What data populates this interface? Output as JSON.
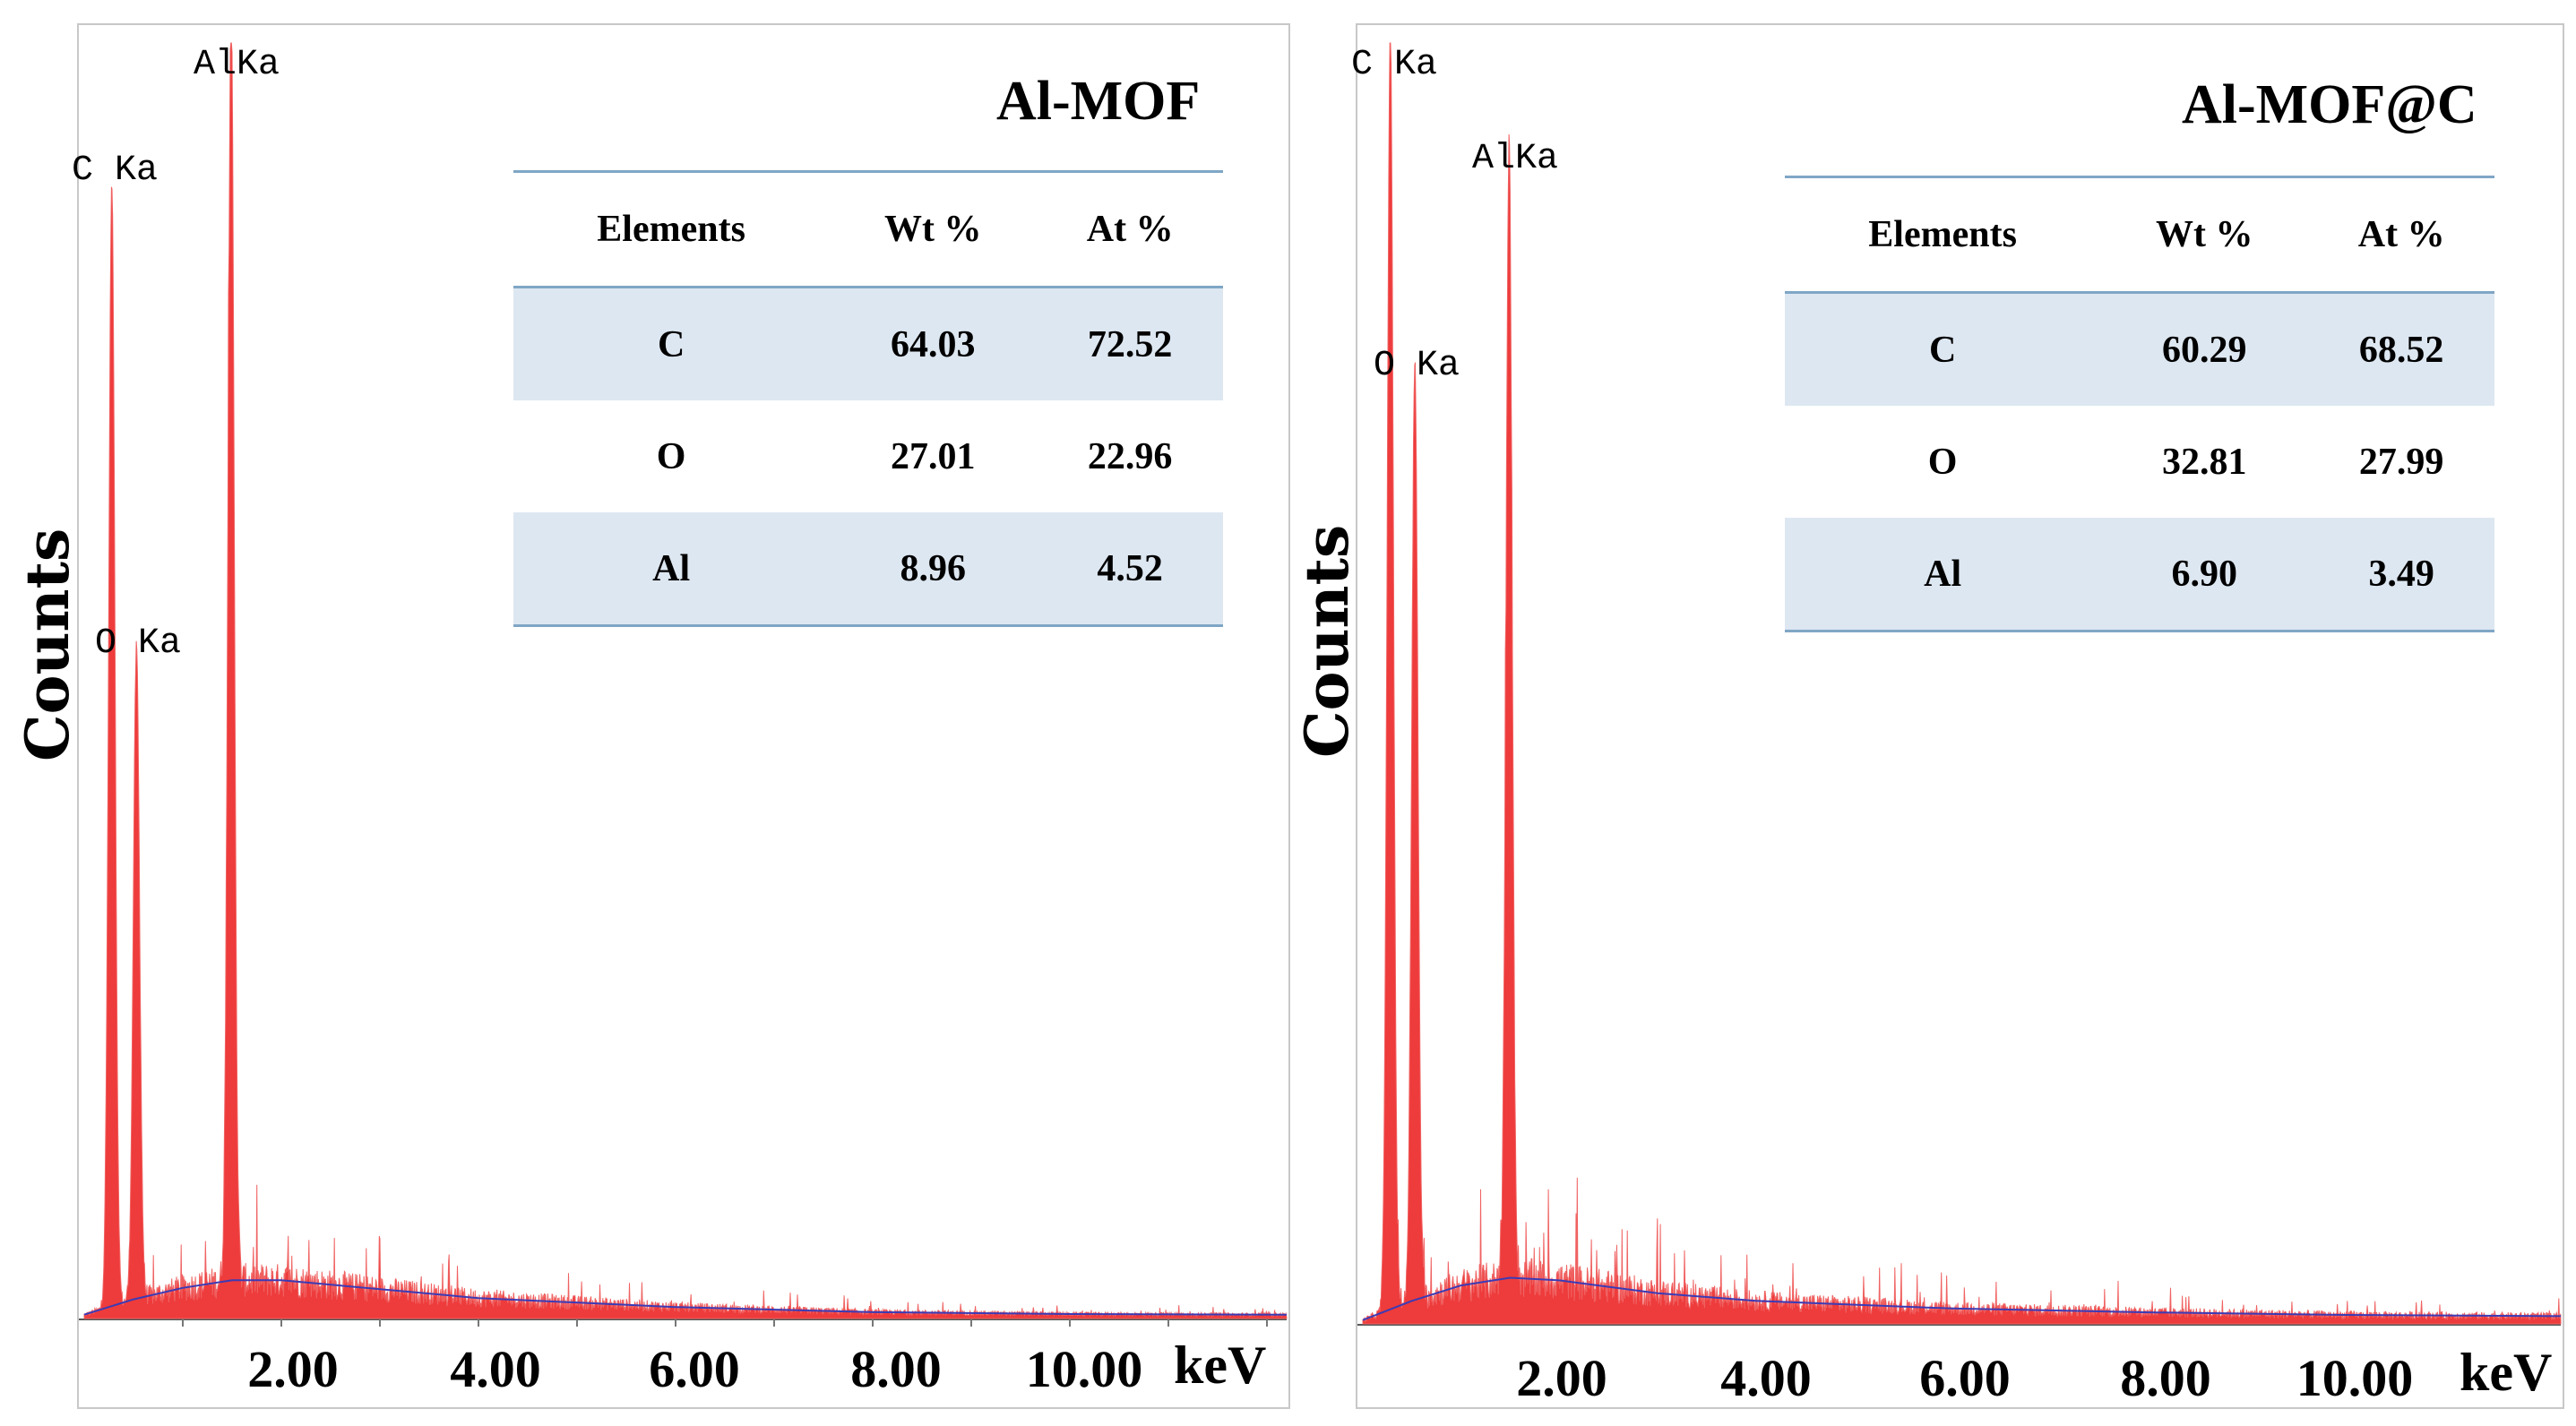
{
  "chart_data": [
    {
      "type": "bar",
      "title": "Al-MOF",
      "ylabel": "Counts",
      "xlabel": "keV",
      "xticks": [
        "2.00",
        "4.00",
        "6.00",
        "8.00",
        "10.00"
      ],
      "xlim": [
        0.0,
        12.2
      ],
      "ylim": [
        0,
        100
      ],
      "peaks": [
        {
          "label": "C Ka",
          "x": 0.28,
          "y": 88
        },
        {
          "label": "O Ka",
          "x": 0.53,
          "y": 51
        },
        {
          "label": "AlKa",
          "x": 1.49,
          "y": 100
        }
      ],
      "background": {
        "x": [
          0.0,
          0.5,
          1.0,
          1.5,
          2.0,
          3.0,
          4.0,
          6.0,
          8.0,
          10.0,
          12.2
        ],
        "y": [
          0.3,
          1.5,
          2.4,
          3.0,
          3.0,
          2.3,
          1.6,
          0.9,
          0.5,
          0.35,
          0.3
        ]
      },
      "table": {
        "headers": [
          "Elements",
          "Wt %",
          "At %"
        ],
        "rows": [
          [
            "C",
            "64.03",
            "72.52"
          ],
          [
            "O",
            "27.01",
            "22.96"
          ],
          [
            "Al",
            "8.96",
            "4.52"
          ]
        ]
      }
    },
    {
      "type": "bar",
      "title": "Al-MOF@C",
      "ylabel": "Counts",
      "xlabel": "keV",
      "xticks": [
        "2.00",
        "4.00",
        "6.00",
        "8.00",
        "10.00"
      ],
      "xlim": [
        0.0,
        12.2
      ],
      "ylim": [
        0,
        100
      ],
      "peaks": [
        {
          "label": "C Ka",
          "x": 0.28,
          "y": 100
        },
        {
          "label": "O Ka",
          "x": 0.53,
          "y": 73
        },
        {
          "label": "AlKa",
          "x": 1.49,
          "y": 88
        }
      ],
      "background": {
        "x": [
          0.0,
          0.5,
          1.0,
          1.5,
          2.0,
          3.0,
          4.0,
          6.0,
          8.0,
          10.0,
          12.2
        ],
        "y": [
          0.3,
          1.8,
          3.0,
          3.6,
          3.4,
          2.4,
          1.8,
          1.2,
          0.9,
          0.7,
          0.6
        ]
      },
      "table": {
        "headers": [
          "Elements",
          "Wt %",
          "At %"
        ],
        "rows": [
          [
            "C",
            "60.29",
            "68.52"
          ],
          [
            "O",
            "32.81",
            "27.99"
          ],
          [
            "Al",
            "6.90",
            "3.49"
          ]
        ]
      }
    }
  ]
}
